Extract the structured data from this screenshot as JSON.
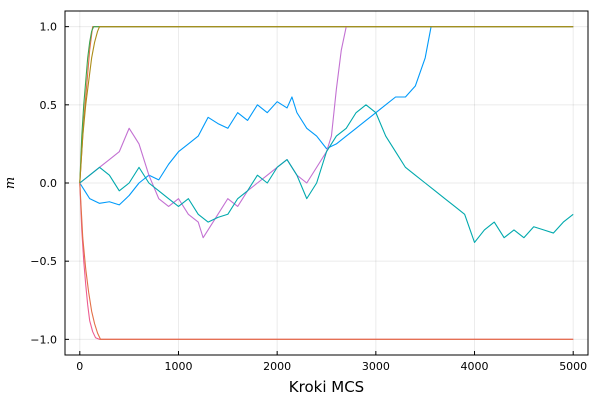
{
  "chart_data": {
    "type": "line",
    "title": "",
    "xlabel": "Kroki MCS",
    "ylabel": "m",
    "xlim": [
      -150,
      5150
    ],
    "ylim": [
      -1.1,
      1.1
    ],
    "xticks": [
      0,
      1000,
      2000,
      3000,
      4000,
      5000
    ],
    "xtick_labels": [
      "0",
      "1000",
      "2000",
      "3000",
      "4000",
      "5000"
    ],
    "yticks": [
      -1.0,
      -0.5,
      0.0,
      0.5,
      1.0
    ],
    "ytick_labels": [
      "−1.0",
      "−0.5",
      "0.0",
      "0.5",
      "1.0"
    ],
    "grid": true,
    "legend": "none",
    "series": [
      {
        "color": "#009AFA",
        "x": [
          0,
          50,
          100,
          200,
          300,
          400,
          500,
          600,
          700,
          800,
          900,
          1000,
          1100,
          1200,
          1300,
          1400,
          1500,
          1600,
          1700,
          1800,
          1900,
          2000,
          2100,
          2150,
          2200,
          2300,
          2400,
          2500,
          2600,
          2700,
          2800,
          2900,
          3000,
          3100,
          3200,
          3300,
          3400,
          3500,
          3560
        ],
        "y": [
          0.0,
          -0.05,
          -0.1,
          -0.13,
          -0.12,
          -0.14,
          -0.08,
          0.0,
          0.05,
          0.02,
          0.12,
          0.2,
          0.25,
          0.3,
          0.42,
          0.38,
          0.35,
          0.45,
          0.4,
          0.5,
          0.45,
          0.52,
          0.48,
          0.55,
          0.45,
          0.35,
          0.3,
          0.22,
          0.25,
          0.3,
          0.35,
          0.4,
          0.45,
          0.5,
          0.55,
          0.55,
          0.62,
          0.8,
          1.0
        ]
      },
      {
        "color": "#E36F47",
        "x": [
          0,
          20,
          40,
          60,
          80,
          100,
          130,
          160,
          2000,
          5000
        ],
        "y": [
          0.0,
          0.2,
          0.4,
          0.55,
          0.7,
          0.85,
          1.0,
          1.0,
          1.0,
          1.0
        ]
      },
      {
        "color": "#3EA44E",
        "x": [
          0,
          20,
          40,
          60,
          80,
          100,
          120,
          140,
          2000,
          5000
        ],
        "y": [
          0.0,
          0.3,
          0.5,
          0.65,
          0.8,
          0.9,
          0.97,
          1.0,
          1.0,
          1.0
        ]
      },
      {
        "color": "#C371D2",
        "x": [
          0,
          100,
          200,
          300,
          400,
          500,
          550,
          600,
          700,
          800,
          900,
          1000,
          1100,
          1200,
          1250,
          1300,
          1400,
          1500,
          1600,
          1700,
          1800,
          1900,
          2000,
          2100,
          2200,
          2300,
          2400,
          2500,
          2550,
          2600,
          2650,
          2700
        ],
        "y": [
          0.0,
          0.05,
          0.1,
          0.15,
          0.2,
          0.35,
          0.3,
          0.25,
          0.05,
          -0.1,
          -0.15,
          -0.1,
          -0.2,
          -0.25,
          -0.35,
          -0.3,
          -0.2,
          -0.1,
          -0.15,
          -0.05,
          0.0,
          0.05,
          0.1,
          0.15,
          0.05,
          0.0,
          0.1,
          0.2,
          0.3,
          0.6,
          0.85,
          1.0
        ]
      },
      {
        "color": "#AC8D18",
        "x": [
          0,
          30,
          60,
          90,
          120,
          150,
          180,
          200,
          5000
        ],
        "y": [
          0.0,
          0.3,
          0.5,
          0.65,
          0.8,
          0.9,
          0.97,
          1.0,
          1.0
        ]
      },
      {
        "color": "#00A9AD",
        "x": [
          0,
          100,
          200,
          300,
          400,
          500,
          600,
          700,
          800,
          900,
          1000,
          1100,
          1200,
          1300,
          1400,
          1500,
          1600,
          1700,
          1800,
          1900,
          2000,
          2100,
          2200,
          2300,
          2400,
          2500,
          2600,
          2700,
          2800,
          2900,
          3000,
          3100,
          3200,
          3300,
          3400,
          3500,
          3600,
          3700,
          3800,
          3900,
          4000,
          4100,
          4200,
          4300,
          4400,
          4500,
          4600,
          4700,
          4800,
          4900,
          5000
        ],
        "y": [
          0.0,
          0.05,
          0.1,
          0.05,
          -0.05,
          0.0,
          0.1,
          0.0,
          -0.05,
          -0.1,
          -0.15,
          -0.1,
          -0.2,
          -0.25,
          -0.22,
          -0.2,
          -0.1,
          -0.05,
          0.05,
          0.0,
          0.1,
          0.15,
          0.05,
          -0.1,
          0.0,
          0.2,
          0.3,
          0.35,
          0.45,
          0.5,
          0.45,
          0.3,
          0.2,
          0.1,
          0.05,
          0.0,
          -0.05,
          -0.1,
          -0.15,
          -0.2,
          -0.38,
          -0.3,
          -0.25,
          -0.35,
          -0.3,
          -0.35,
          -0.28,
          -0.3,
          -0.32,
          -0.25,
          -0.2
        ]
      },
      {
        "color": "#ED5D92",
        "x": [
          0,
          20,
          40,
          60,
          80,
          100,
          130,
          160,
          200,
          5000
        ],
        "y": [
          0.0,
          -0.3,
          -0.5,
          -0.65,
          -0.78,
          -0.88,
          -0.95,
          -0.99,
          -1.0,
          -1.0
        ]
      },
      {
        "color": "#E36F47",
        "x": [
          0,
          30,
          60,
          90,
          120,
          150,
          180,
          210,
          5000
        ],
        "y": [
          0.0,
          -0.35,
          -0.55,
          -0.7,
          -0.82,
          -0.9,
          -0.96,
          -1.0,
          -1.0
        ]
      }
    ]
  }
}
